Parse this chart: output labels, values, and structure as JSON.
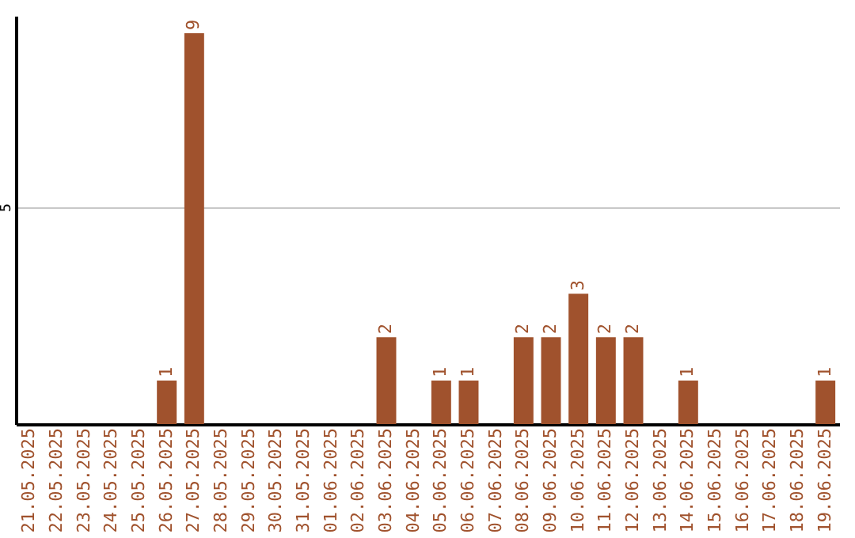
{
  "chart_data": {
    "type": "bar",
    "categories": [
      "21.05.2025",
      "22.05.2025",
      "23.05.2025",
      "24.05.2025",
      "25.05.2025",
      "26.05.2025",
      "27.05.2025",
      "28.05.2025",
      "29.05.2025",
      "30.05.2025",
      "31.05.2025",
      "01.06.2025",
      "02.06.2025",
      "03.06.2025",
      "04.06.2025",
      "05.06.2025",
      "06.06.2025",
      "07.06.2025",
      "08.06.2025",
      "09.06.2025",
      "10.06.2025",
      "11.06.2025",
      "12.06.2025",
      "13.06.2025",
      "14.06.2025",
      "15.06.2025",
      "16.06.2025",
      "17.06.2025",
      "18.06.2025",
      "19.06.2025"
    ],
    "values": [
      0,
      0,
      0,
      0,
      0,
      1,
      9,
      0,
      0,
      0,
      0,
      0,
      0,
      2,
      0,
      1,
      1,
      0,
      2,
      2,
      3,
      2,
      2,
      0,
      1,
      0,
      0,
      0,
      0,
      1
    ],
    "value_labels": [
      null,
      null,
      null,
      null,
      null,
      "1",
      "9",
      null,
      null,
      null,
      null,
      null,
      null,
      "2",
      null,
      "1",
      "1",
      null,
      "2",
      "2",
      "3",
      "2",
      "2",
      null,
      "1",
      null,
      null,
      null,
      null,
      "1"
    ],
    "color": "#a0522d",
    "ylim": [
      0,
      9.4
    ],
    "yticks": [
      5
    ],
    "grid": "y"
  }
}
